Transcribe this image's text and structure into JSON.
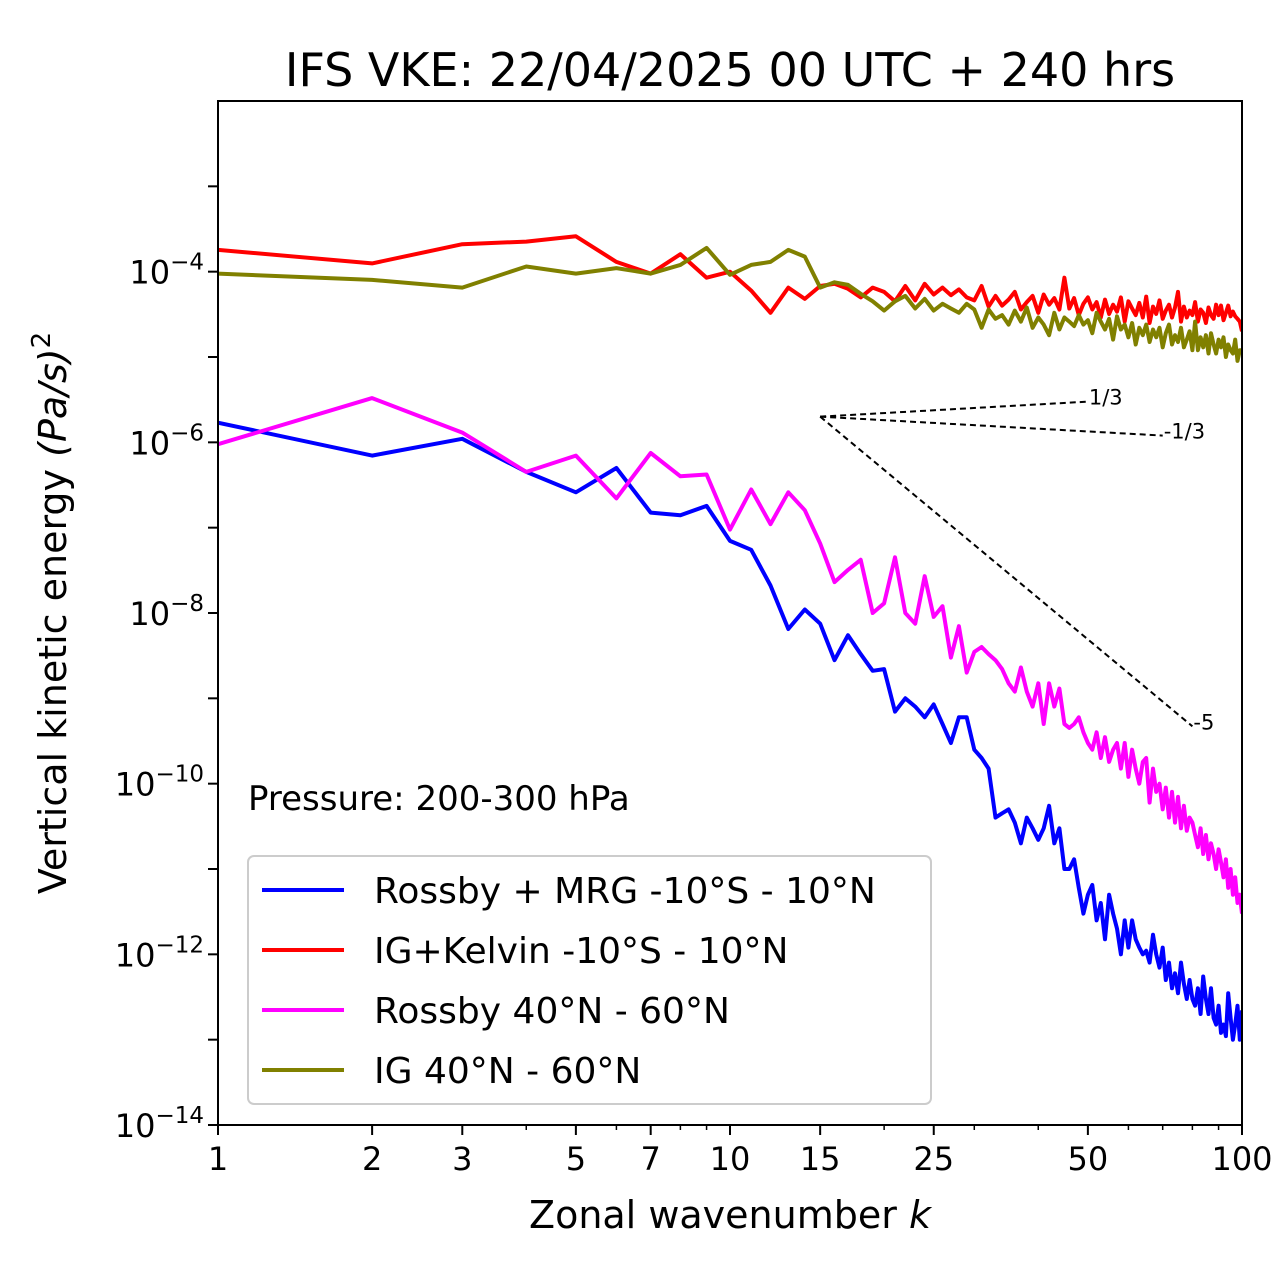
{
  "chart_data": {
    "type": "line",
    "title": "IFS VKE: 22/04/2025 00 UTC + 240 hrs",
    "xlabel": "Zonal wavenumber",
    "xlabel_var": "k",
    "ylabel": "Vertical kinetic energy",
    "ylabel_unit": "(Pa/s)",
    "ylabel_power": "2",
    "xscale": "log",
    "yscale": "log",
    "xlim": [
      1,
      100
    ],
    "ylim": [
      1e-14,
      0.01
    ],
    "x_ticks": [
      {
        "value": 1,
        "label": "1"
      },
      {
        "value": 2,
        "label": "2"
      },
      {
        "value": 3,
        "label": "3"
      },
      {
        "value": 5,
        "label": "5"
      },
      {
        "value": 7,
        "label": "7"
      },
      {
        "value": 10,
        "label": "10"
      },
      {
        "value": 15,
        "label": "15"
      },
      {
        "value": 25,
        "label": "25"
      },
      {
        "value": 50,
        "label": "50"
      },
      {
        "value": 100,
        "label": "100"
      }
    ],
    "y_ticks": [
      {
        "exp": -14,
        "base": "10",
        "power": "−14"
      },
      {
        "exp": -12,
        "base": "10",
        "power": "−12"
      },
      {
        "exp": -10,
        "base": "10",
        "power": "−10"
      },
      {
        "exp": -8,
        "base": "10",
        "power": "−8"
      },
      {
        "exp": -6,
        "base": "10",
        "power": "−6"
      },
      {
        "exp": -4,
        "base": "10",
        "power": "−4"
      }
    ],
    "annotation": "Pressure: 200-300 hPa",
    "legend_position": "lower-left",
    "series": [
      {
        "name": "Rossby + MRG -10°S - 10°N",
        "color": "#0000ff",
        "x": [
          1,
          2,
          3,
          4,
          5,
          6,
          7,
          8,
          9,
          10,
          11,
          12,
          13,
          14,
          15,
          16,
          17,
          18,
          19,
          20,
          21,
          22,
          23,
          24,
          25,
          26,
          27,
          28,
          29,
          30,
          31,
          32,
          33,
          34,
          35,
          36,
          37,
          38,
          39,
          40,
          41,
          42,
          43,
          44,
          45,
          46,
          47,
          48,
          49,
          50,
          51,
          52,
          53,
          54,
          55,
          56,
          57,
          58,
          59,
          60,
          61,
          62,
          63,
          64,
          65,
          66,
          67,
          68,
          69,
          70,
          71,
          72,
          73,
          74,
          75,
          76,
          77,
          78,
          79,
          80,
          81,
          82,
          83,
          84,
          85,
          86,
          87,
          88,
          89,
          90,
          91,
          92,
          93,
          94,
          95,
          96,
          97,
          98,
          99,
          100
        ],
        "y": [
          1.7e-06,
          7e-07,
          1.1e-06,
          4.5e-07,
          2.6e-07,
          5e-07,
          1.5e-07,
          1.4e-07,
          1.8e-07,
          7e-08,
          5.5e-08,
          2.1e-08,
          6.5e-09,
          1.1e-08,
          7.5e-09,
          2.8e-09,
          5.5e-09,
          3.3e-09,
          2.1e-09,
          2.2e-09,
          7e-10,
          1e-09,
          8e-10,
          6e-10,
          8.5e-10,
          5e-10,
          3e-10,
          6e-10,
          6e-10,
          2.5e-10,
          2e-10,
          1.5e-10,
          4e-11,
          4.5e-11,
          5e-11,
          3.5e-11,
          2e-11,
          4e-11,
          3e-11,
          2.2e-11,
          3e-11,
          5.5e-11,
          2e-11,
          3e-11,
          1e-11,
          1e-11,
          1.3e-11,
          6e-12,
          3e-12,
          5e-12,
          6.5e-12,
          2.5e-12,
          4e-12,
          1.5e-12,
          5e-12,
          3e-12,
          2e-12,
          1e-12,
          2.5e-12,
          1.2e-12,
          2.5e-12,
          1.5e-12,
          1.2e-12,
          1e-12,
          1.1e-12,
          8e-13,
          1.7e-12,
          1e-12,
          7e-13,
          1.2e-12,
          5e-13,
          8e-13,
          4e-13,
          6e-13,
          3.5e-13,
          8e-13,
          4.5e-13,
          3e-13,
          5e-13,
          3e-13,
          2.5e-13,
          4e-13,
          2e-13,
          5.5e-13,
          3e-13,
          2e-13,
          4e-13,
          1.8e-13,
          1.5e-13,
          2.5e-13,
          1.2e-13,
          1.5e-13,
          1.1e-13,
          3.5e-13,
          1.8e-13,
          1e-13,
          1.5e-13,
          2.5e-13,
          1e-13,
          2.2e-13
        ]
      },
      {
        "name": "IG+Kelvin -10°S - 10°N",
        "color": "#ff0000",
        "x": [
          1,
          2,
          3,
          4,
          5,
          6,
          7,
          8,
          9,
          10,
          11,
          12,
          13,
          14,
          15,
          16,
          17,
          18,
          19,
          20,
          21,
          22,
          23,
          24,
          25,
          26,
          27,
          28,
          29,
          30,
          31,
          32,
          33,
          34,
          35,
          36,
          37,
          38,
          39,
          40,
          41,
          42,
          43,
          44,
          45,
          46,
          47,
          48,
          49,
          50,
          51,
          52,
          53,
          54,
          55,
          56,
          57,
          58,
          59,
          60,
          61,
          62,
          63,
          64,
          65,
          66,
          67,
          68,
          69,
          70,
          71,
          72,
          73,
          74,
          75,
          76,
          77,
          78,
          79,
          80,
          81,
          82,
          83,
          84,
          85,
          86,
          87,
          88,
          89,
          90,
          91,
          92,
          93,
          94,
          95,
          96,
          97,
          98,
          99,
          100
        ],
        "y": [
          0.00018,
          0.000125,
          0.00021,
          0.000225,
          0.00026,
          0.00013,
          9.5e-05,
          0.00016,
          8.5e-05,
          0.0001,
          6e-05,
          3.3e-05,
          6.5e-05,
          4.8e-05,
          6.8e-05,
          7.2e-05,
          6.3e-05,
          5e-05,
          6.5e-05,
          5.8e-05,
          4.5e-05,
          6.8e-05,
          4.6e-05,
          7.2e-05,
          5.4e-05,
          6.5e-05,
          5.3e-05,
          6.2e-05,
          5e-05,
          4.6e-05,
          6.8e-05,
          3.9e-05,
          5.2e-05,
          4e-05,
          4.7e-05,
          5.8e-05,
          3.6e-05,
          4.4e-05,
          5.2e-05,
          3.3e-05,
          5.4e-05,
          4.1e-05,
          4.9e-05,
          3.6e-05,
          8.5e-05,
          3.7e-05,
          4.9e-05,
          3.1e-05,
          4.2e-05,
          5e-05,
          3.6e-05,
          4.4e-05,
          2.9e-05,
          4.7e-05,
          3.2e-05,
          4.1e-05,
          3.4e-05,
          5e-05,
          2.6e-05,
          4.5e-05,
          3.7e-05,
          3.1e-05,
          4.3e-05,
          2.9e-05,
          5.1e-05,
          2.5e-05,
          3.9e-05,
          3.2e-05,
          4.6e-05,
          2.8e-05,
          3.5e-05,
          4.1e-05,
          2.9e-05,
          3.8e-05,
          5.8e-05,
          2.6e-05,
          3.9e-05,
          2.9e-05,
          3.5e-05,
          3.1e-05,
          4.4e-05,
          2.6e-05,
          3.6e-05,
          3.3e-05,
          2.5e-05,
          3.8e-05,
          3.1e-05,
          2.8e-05,
          4.1e-05,
          3.1e-05,
          4e-05,
          2.7e-05,
          3.3e-05,
          4e-05,
          3e-05,
          3.4e-05,
          3e-05,
          2.8e-05,
          2.6e-05,
          2e-05
        ]
      },
      {
        "name": "Rossby 40°N - 60°N",
        "color": "#ff00ff",
        "x": [
          1,
          2,
          3,
          4,
          5,
          6,
          7,
          8,
          9,
          10,
          11,
          12,
          13,
          14,
          15,
          16,
          17,
          18,
          19,
          20,
          21,
          22,
          23,
          24,
          25,
          26,
          27,
          28,
          29,
          30,
          31,
          32,
          33,
          34,
          35,
          36,
          37,
          38,
          39,
          40,
          41,
          42,
          43,
          44,
          45,
          46,
          47,
          48,
          49,
          50,
          51,
          52,
          53,
          54,
          55,
          56,
          57,
          58,
          59,
          60,
          61,
          62,
          63,
          64,
          65,
          66,
          67,
          68,
          69,
          70,
          71,
          72,
          73,
          74,
          75,
          76,
          77,
          78,
          79,
          80,
          81,
          82,
          83,
          84,
          85,
          86,
          87,
          88,
          89,
          90,
          91,
          92,
          93,
          94,
          95,
          96,
          97,
          98,
          99,
          100
        ],
        "y": [
          9.5e-07,
          3.3e-06,
          1.3e-06,
          4.5e-07,
          7e-07,
          2.2e-07,
          7.5e-07,
          4e-07,
          4.2e-07,
          9.5e-08,
          2.8e-07,
          1.1e-07,
          2.6e-07,
          1.6e-07,
          6.5e-08,
          2.3e-08,
          3.2e-08,
          4.2e-08,
          1e-08,
          1.3e-08,
          4.5e-08,
          1e-08,
          7.5e-09,
          2.7e-08,
          9e-09,
          1.2e-08,
          3e-09,
          7e-09,
          2e-09,
          3.5e-09,
          4e-09,
          3.3e-09,
          2.8e-09,
          2.2e-09,
          1.5e-09,
          1.2e-09,
          2.3e-09,
          1.2e-09,
          8e-10,
          1.5e-09,
          5e-10,
          1.5e-09,
          8e-10,
          1.3e-09,
          5e-10,
          4.5e-10,
          5e-10,
          6e-10,
          4e-10,
          3e-10,
          2.5e-10,
          4e-10,
          2e-10,
          3.5e-10,
          1.8e-10,
          2.5e-10,
          3e-10,
          1.5e-10,
          3e-10,
          1.2e-10,
          2.5e-10,
          1.5e-10,
          1e-10,
          1.8e-10,
          2e-10,
          6e-11,
          1.5e-10,
          8e-11,
          1e-10,
          5e-11,
          9e-11,
          4e-11,
          8e-11,
          3.5e-11,
          7e-11,
          3e-11,
          5.5e-11,
          2.8e-11,
          4e-11,
          3.5e-11,
          2.5e-11,
          1.8e-11,
          3e-11,
          1.5e-11,
          2.5e-11,
          1.3e-11,
          2e-11,
          1.5e-11,
          1e-11,
          1.7e-11,
          1.2e-11,
          8e-12,
          1.3e-11,
          6e-12,
          1e-11,
          5e-12,
          8e-12,
          4e-12,
          5e-12,
          3e-12
        ]
      },
      {
        "name": "IG 40°N - 60°N",
        "color": "#808000",
        "x": [
          1,
          2,
          3,
          4,
          5,
          6,
          7,
          8,
          9,
          10,
          11,
          12,
          13,
          14,
          15,
          16,
          17,
          18,
          19,
          20,
          21,
          22,
          23,
          24,
          25,
          26,
          27,
          28,
          29,
          30,
          31,
          32,
          33,
          34,
          35,
          36,
          37,
          38,
          39,
          40,
          41,
          42,
          43,
          44,
          45,
          46,
          47,
          48,
          49,
          50,
          51,
          52,
          53,
          54,
          55,
          56,
          57,
          58,
          59,
          60,
          61,
          62,
          63,
          64,
          65,
          66,
          67,
          68,
          69,
          70,
          71,
          72,
          73,
          74,
          75,
          76,
          77,
          78,
          79,
          80,
          81,
          82,
          83,
          84,
          85,
          86,
          87,
          88,
          89,
          90,
          91,
          92,
          93,
          94,
          95,
          96,
          97,
          98,
          99,
          100
        ],
        "y": [
          9.5e-05,
          8e-05,
          6.5e-05,
          0.000115,
          9.5e-05,
          0.00011,
          9.5e-05,
          0.00012,
          0.00019,
          9.2e-05,
          0.00012,
          0.00013,
          0.00018,
          0.00015,
          6.5e-05,
          7.5e-05,
          7e-05,
          5.5e-05,
          4.5e-05,
          3.5e-05,
          4.5e-05,
          5.2e-05,
          3.7e-05,
          4.8e-05,
          3.5e-05,
          4.2e-05,
          3.7e-05,
          3.3e-05,
          4.2e-05,
          3.6e-05,
          2.2e-05,
          3.6e-05,
          2.8e-05,
          3.1e-05,
          2.4e-05,
          3.5e-05,
          2.6e-05,
          3.8e-05,
          2.2e-05,
          2.9e-05,
          2.4e-05,
          1.8e-05,
          3.3e-05,
          2.1e-05,
          2.9e-05,
          2.6e-05,
          2.3e-05,
          3.1e-05,
          2.4e-05,
          2.7e-05,
          1.9e-05,
          3.3e-05,
          2.6e-05,
          2.1e-05,
          2.8e-05,
          1.6e-05,
          3e-05,
          2.1e-05,
          2.4e-05,
          1.7e-05,
          2.5e-05,
          1.4e-05,
          2.2e-05,
          1.8e-05,
          2.4e-05,
          1.5e-05,
          2.1e-05,
          1.7e-05,
          2.2e-05,
          1.3e-05,
          1.9e-05,
          2.4e-05,
          1.4e-05,
          1.8e-05,
          1.5e-05,
          2.2e-05,
          1.3e-05,
          1.6e-05,
          2e-05,
          1.2e-05,
          2.6e-05,
          1.2e-05,
          1.7e-05,
          1.3e-05,
          1.8e-05,
          1.1e-05,
          1.9e-05,
          1.4e-05,
          1.1e-05,
          1.6e-05,
          1.3e-05,
          1.7e-05,
          1e-05,
          1.4e-05,
          1.2e-05,
          1.1e-05,
          1.6e-05,
          9e-06,
          1.2e-05,
          1.2e-05
        ]
      }
    ],
    "reference_slopes": [
      {
        "label": "1/3",
        "x_start": 15,
        "y_start": 2e-06,
        "x_end": 50,
        "y_end": 3e-06
      },
      {
        "label": "-1/3",
        "x_start": 15,
        "y_start": 2e-06,
        "x_end": 70,
        "y_end": 1.2e-06
      },
      {
        "label": "-5",
        "x_start": 15,
        "y_start": 2e-06,
        "x_end": 80,
        "y_end": 4.7e-10
      }
    ]
  }
}
